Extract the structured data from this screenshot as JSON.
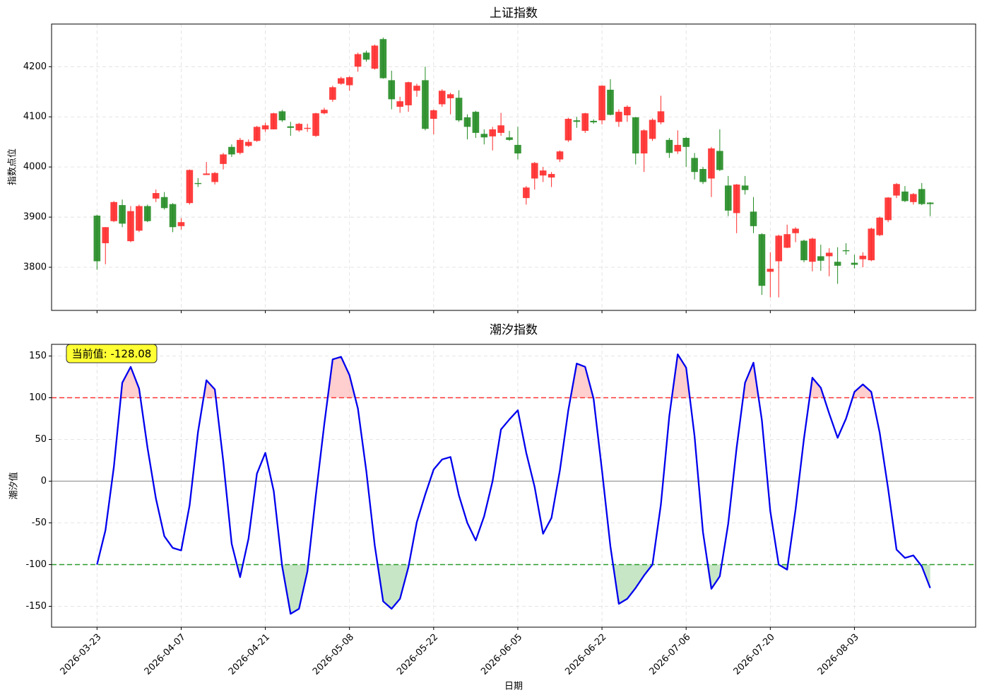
{
  "chart_data": [
    {
      "type": "candlestick",
      "title": "上证指数",
      "ylabel": "指数点位",
      "categories": [
        "2026-03-23",
        null,
        null,
        null,
        null,
        null,
        null,
        null,
        null,
        null,
        "2026-04-07",
        null,
        null,
        null,
        null,
        null,
        null,
        null,
        null,
        null,
        "2026-04-21",
        null,
        null,
        null,
        null,
        null,
        null,
        null,
        null,
        null,
        "2026-05-08",
        null,
        null,
        null,
        null,
        null,
        null,
        null,
        null,
        null,
        "2026-05-22",
        null,
        null,
        null,
        null,
        null,
        null,
        null,
        null,
        null,
        "2026-06-05",
        null,
        null,
        null,
        null,
        null,
        null,
        null,
        null,
        null,
        "2026-06-22",
        null,
        null,
        null,
        null,
        null,
        null,
        null,
        null,
        null,
        "2026-07-06",
        null,
        null,
        null,
        null,
        null,
        null,
        null,
        null,
        null,
        "2026-07-20",
        null,
        null,
        null,
        null,
        null,
        null,
        null,
        null,
        null,
        "2026-08-03",
        null,
        null,
        null,
        null,
        null,
        null,
        null,
        null,
        null
      ],
      "open": [
        3903,
        3848,
        3892,
        3924,
        3852,
        3873,
        3922,
        3937,
        3940,
        3926,
        3882,
        3928,
        3968,
        3984,
        3970,
        4006,
        4040,
        4028,
        4042,
        4052,
        4075,
        4075,
        4111,
        4081,
        4073,
        4076,
        4062,
        4107,
        4134,
        4166,
        4163,
        4200,
        4228,
        4196,
        4255,
        4173,
        4120,
        4123,
        4152,
        4173,
        4096,
        4125,
        4137,
        4138,
        4099,
        4110,
        4066,
        4061,
        4068,
        4059,
        4044,
        3938,
        3977,
        3983,
        3979,
        4015,
        4053,
        4093,
        4072,
        4092,
        4093,
        4154,
        4090,
        4103,
        4099,
        4027,
        4056,
        4089,
        4054,
        4031,
        4058,
        4018,
        3996,
        3977,
        4032,
        3963,
        3908,
        3963,
        3911,
        3866,
        3791,
        3812,
        3839,
        3868,
        3853,
        3811,
        3822,
        3822,
        3811,
        3834,
        3809,
        3816,
        3814,
        3864,
        3894,
        3943,
        3951,
        3930,
        3956,
        3929
      ],
      "high": [
        3905,
        3880,
        3932,
        3935,
        3922,
        3925,
        3925,
        3955,
        3950,
        3928,
        3898,
        3995,
        3978,
        4010,
        3990,
        4028,
        4045,
        4058,
        4055,
        4082,
        4088,
        4108,
        4114,
        4090,
        4088,
        4086,
        4108,
        4118,
        4162,
        4180,
        4181,
        4228,
        4232,
        4244,
        4258,
        4192,
        4140,
        4170,
        4166,
        4200,
        4115,
        4155,
        4148,
        4153,
        4105,
        4112,
        4075,
        4080,
        4108,
        4072,
        4080,
        3962,
        4010,
        4000,
        3990,
        4033,
        4098,
        4100,
        4108,
        4095,
        4163,
        4175,
        4115,
        4123,
        4100,
        4075,
        4097,
        4142,
        4058,
        4073,
        4060,
        4028,
        4000,
        4040,
        4075,
        3982,
        3966,
        3982,
        3940,
        3868,
        3830,
        3865,
        3885,
        3880,
        3855,
        3859,
        3845,
        3838,
        3840,
        3848,
        3825,
        3830,
        3879,
        3901,
        3940,
        3968,
        3962,
        3948,
        3968,
        3930
      ],
      "low": [
        3795,
        3806,
        3890,
        3880,
        3850,
        3870,
        3890,
        3930,
        3915,
        3870,
        3875,
        3925,
        3960,
        3985,
        3965,
        3995,
        4020,
        4025,
        4040,
        4050,
        4070,
        4075,
        4090,
        4062,
        4070,
        4070,
        4060,
        4105,
        4130,
        4164,
        4152,
        4190,
        4210,
        4194,
        4176,
        4115,
        4108,
        4110,
        4140,
        4073,
        4065,
        4120,
        4105,
        4090,
        4055,
        4058,
        4045,
        4033,
        4062,
        4052,
        4015,
        3925,
        3955,
        3970,
        3960,
        4010,
        4050,
        4078,
        4068,
        4086,
        4085,
        4103,
        4080,
        4090,
        4005,
        3990,
        4052,
        4085,
        4018,
        4026,
        4000,
        3975,
        3966,
        3940,
        3992,
        3902,
        3868,
        3945,
        3868,
        3745,
        3740,
        3740,
        3838,
        3850,
        3810,
        3792,
        3793,
        3782,
        3767,
        3825,
        3798,
        3800,
        3812,
        3862,
        3890,
        3938,
        3930,
        3925,
        3924,
        3902
      ],
      "close": [
        3812,
        3880,
        3930,
        3887,
        3912,
        3922,
        3892,
        3948,
        3918,
        3880,
        3890,
        3994,
        3966,
        3987,
        3988,
        4025,
        4025,
        4054,
        4050,
        4080,
        4083,
        4107,
        4093,
        4078,
        4086,
        4078,
        4107,
        4114,
        4159,
        4177,
        4179,
        4225,
        4214,
        4242,
        4177,
        4135,
        4131,
        4169,
        4162,
        4076,
        4113,
        4152,
        4145,
        4093,
        4080,
        4068,
        4059,
        4075,
        4083,
        4054,
        4027,
        3959,
        4008,
        3993,
        3986,
        4031,
        4096,
        4090,
        4107,
        4089,
        4162,
        4104,
        4110,
        4120,
        4027,
        4073,
        4094,
        4111,
        4028,
        4044,
        4040,
        3990,
        3970,
        4037,
        3994,
        3913,
        3965,
        3954,
        3882,
        3763,
        3797,
        3863,
        3866,
        3877,
        3814,
        3857,
        3813,
        3829,
        3803,
        3832,
        3805,
        3823,
        3877,
        3899,
        3939,
        3966,
        3932,
        3946,
        3926,
        3926
      ],
      "up_color": "#ff2a2a",
      "down_color": "#228b22",
      "xlim": [
        -5.4,
        104.4
      ],
      "ylim": [
        3714,
        4285
      ],
      "yticks": [
        3800,
        3900,
        4000,
        4100,
        4200
      ],
      "grid": true
    },
    {
      "type": "line",
      "title": "潮汐指数",
      "ylabel": "潮汐值",
      "xlabel": "日期",
      "annotation": "当前值: -128.08",
      "categories": [
        "2026-03-23",
        null,
        null,
        null,
        null,
        null,
        null,
        null,
        null,
        null,
        "2026-04-07",
        null,
        null,
        null,
        null,
        null,
        null,
        null,
        null,
        null,
        "2026-04-21",
        null,
        null,
        null,
        null,
        null,
        null,
        null,
        null,
        null,
        "2026-05-08",
        null,
        null,
        null,
        null,
        null,
        null,
        null,
        null,
        null,
        "2026-05-22",
        null,
        null,
        null,
        null,
        null,
        null,
        null,
        null,
        null,
        "2026-06-05",
        null,
        null,
        null,
        null,
        null,
        null,
        null,
        null,
        null,
        "2026-06-22",
        null,
        null,
        null,
        null,
        null,
        null,
        null,
        null,
        null,
        "2026-07-06",
        null,
        null,
        null,
        null,
        null,
        null,
        null,
        null,
        null,
        "2026-07-20",
        null,
        null,
        null,
        null,
        null,
        null,
        null,
        null,
        null,
        "2026-08-03",
        null,
        null,
        null,
        null,
        null,
        null,
        null,
        null,
        null
      ],
      "values": [
        -100,
        -59,
        17,
        118,
        137,
        111,
        40,
        -21,
        -66,
        -80,
        -83,
        -29,
        59,
        121,
        110,
        24,
        -75,
        -115,
        -69,
        9,
        34,
        -12,
        -102,
        -159,
        -153,
        -108,
        -17,
        68,
        146,
        149,
        127,
        87,
        12,
        -77,
        -144,
        -153,
        -141,
        -103,
        -49,
        -16,
        14,
        26,
        29,
        -17,
        -50,
        -71,
        -42,
        0,
        62,
        74,
        85,
        34,
        -7,
        -63,
        -44,
        13,
        85,
        141,
        137,
        99,
        13,
        -78,
        -147,
        -141,
        -128,
        -113,
        -100,
        -28,
        78,
        152,
        136,
        54,
        -61,
        -129,
        -114,
        -51,
        40,
        118,
        142,
        73,
        -36,
        -100,
        -106,
        -34,
        51,
        124,
        112,
        81,
        52,
        75,
        107,
        116,
        107,
        58,
        -9,
        -82,
        -92,
        -89,
        -102,
        -128.08
      ],
      "color": "#0000ee",
      "thresholds": [
        {
          "value": 100,
          "color": "#ff3333",
          "fill": "#ffb3b3"
        },
        {
          "value": -100,
          "color": "#2a9d2a",
          "fill": "#a8d8a8"
        }
      ],
      "reference_line": 0,
      "xlim": [
        -5.4,
        104.4
      ],
      "ylim": [
        -175,
        164
      ],
      "yticks": [
        -150,
        -100,
        -50,
        0,
        50,
        100,
        150
      ],
      "grid": true
    }
  ]
}
